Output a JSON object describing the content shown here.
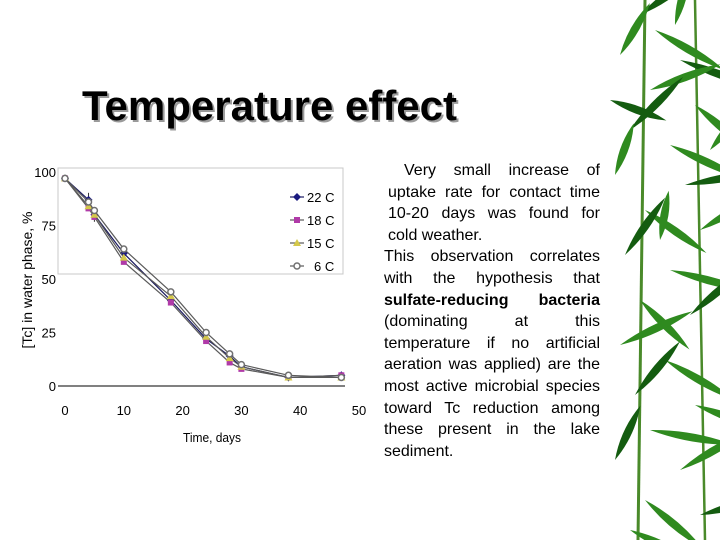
{
  "title": "Temperature effect",
  "body": {
    "paragraph1": "Very small increase of uptake rate for contact time 10-20 days was found for cold weather.",
    "paragraph2_start": "This observation correlates with the hypothesis that ",
    "paragraph2_bold": "sulfate-reducing bacteria",
    "paragraph2_end": " (dominating at this temperature if no artificial aeration was applied) are the most active microbial species toward Tc reduction among these present in the lake sediment."
  },
  "colors": {
    "title": "#000000",
    "title_shadow": "#9a9a9a",
    "bamboo_leaf": "#2f8a1f",
    "bamboo_dark": "#145c10"
  },
  "decoration": {
    "right_side": "bamboo-leaves"
  },
  "chart_data": {
    "type": "line",
    "title": "",
    "xlabel": "Time, days",
    "ylabel": "[Tc] in water phase, %",
    "xlim": [
      0,
      50
    ],
    "ylim": [
      0,
      100
    ],
    "xticks": [
      0,
      10,
      20,
      30,
      40,
      50
    ],
    "yticks": [
      0,
      25,
      50,
      75,
      100
    ],
    "grid": false,
    "legend_position": "top-right",
    "series": [
      {
        "name": "22 C",
        "color": "#1a1a80",
        "marker": "diamond",
        "x": [
          0,
          4,
          5,
          10,
          18,
          24,
          28,
          30,
          38,
          47
        ],
        "y": [
          97,
          87,
          80,
          62,
          40,
          22,
          14,
          9,
          4,
          5
        ]
      },
      {
        "name": "18 C",
        "color": "#b03aa8",
        "marker": "square",
        "x": [
          0,
          4,
          5,
          10,
          18,
          24,
          28,
          30,
          38,
          47
        ],
        "y": [
          97,
          83,
          79,
          58,
          39,
          21,
          11,
          8,
          4,
          5
        ]
      },
      {
        "name": "15 C",
        "color": "#d4c84a",
        "marker": "triangle",
        "x": [
          0,
          4,
          5,
          10,
          18,
          24,
          28,
          30,
          38,
          47
        ],
        "y": [
          97,
          84,
          80,
          60,
          42,
          23,
          13,
          9,
          4,
          4
        ]
      },
      {
        "name": "6 C",
        "color": "#707070",
        "marker": "circle",
        "x": [
          0,
          4,
          5,
          10,
          18,
          24,
          28,
          30,
          38,
          47
        ],
        "y": [
          97,
          86,
          82,
          64,
          44,
          25,
          15,
          10,
          5,
          4
        ]
      }
    ]
  }
}
